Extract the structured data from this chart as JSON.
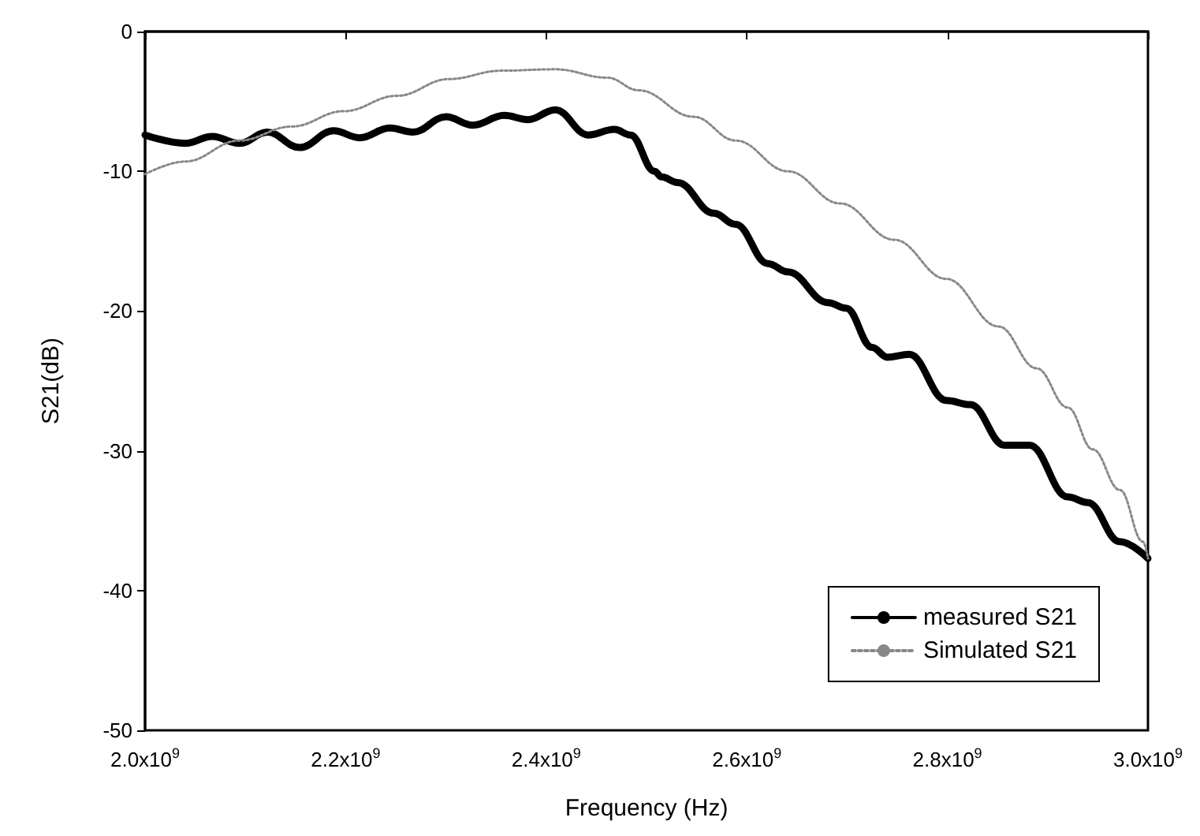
{
  "chart_data": {
    "type": "line",
    "xlabel": "Frequency (Hz)",
    "ylabel": "S21(dB)",
    "xlim": [
      2000000000,
      3000000000
    ],
    "xticks": [
      {
        "value": 2000000000,
        "label": "2.0x10$^{9}$"
      },
      {
        "value": 2200000000,
        "label": "2.2x10$^{9}$"
      },
      {
        "value": 2400000000,
        "label": "2.4x10$^{9}$"
      },
      {
        "value": 2600000000,
        "label": "2.6x10$^{9}$"
      },
      {
        "value": 2800000000,
        "label": "2.8x10$^{9}$"
      },
      {
        "value": 3000000000,
        "label": "3.0x10$^{9}$"
      }
    ],
    "ylim": [
      -50,
      0
    ],
    "yticks": [
      -50,
      -40,
      -30,
      -20,
      -10,
      0
    ],
    "grid": false,
    "legend": "bottom right",
    "marker": "none",
    "series": [
      {
        "name": "measured S21",
        "color": "#000000",
        "line_style": "solid",
        "x": [
          2000000000,
          2040000000,
          2067000000,
          2094000000,
          2122000000,
          2154000000,
          2188000000,
          2214000000,
          2244000000,
          2267000000,
          2300000000,
          2327000000,
          2358000000,
          2382000000,
          2409000000,
          2442000000,
          2468000000,
          2484000000,
          2508000000,
          2515000000,
          2531000000,
          2567000000,
          2589000000,
          2621000000,
          2641000000,
          2681000000,
          2699000000,
          2725000000,
          2740000000,
          2762000000,
          2799000000,
          2823000000,
          2857000000,
          2882000000,
          2920000000,
          2940000000,
          2972000000,
          3000000000
        ],
        "values": [
          -7.4,
          -8.0,
          -7.5,
          -8.0,
          -7.2,
          -8.3,
          -7.1,
          -7.6,
          -6.9,
          -7.2,
          -6.1,
          -6.7,
          -6.0,
          -6.3,
          -5.6,
          -7.4,
          -7.0,
          -7.4,
          -10.0,
          -10.4,
          -10.8,
          -13.0,
          -13.8,
          -16.6,
          -17.2,
          -19.4,
          -19.8,
          -22.6,
          -23.3,
          -23.1,
          -26.4,
          -26.7,
          -29.6,
          -29.6,
          -33.3,
          -33.7,
          -36.5,
          -37.7
        ]
      },
      {
        "name": "Simulated S21",
        "color": "#888888",
        "line_style": "dotted",
        "x": [
          2000000000,
          2040000000,
          2094000000,
          2146000000,
          2198000000,
          2251000000,
          2303000000,
          2355000000,
          2409000000,
          2461000000,
          2492000000,
          2547000000,
          2589000000,
          2641000000,
          2693000000,
          2747000000,
          2799000000,
          2851000000,
          2889000000,
          2920000000,
          2945000000,
          2972000000,
          2995000000,
          3000000000
        ],
        "values": [
          -10.2,
          -9.3,
          -7.8,
          -6.8,
          -5.7,
          -4.6,
          -3.4,
          -2.8,
          -2.7,
          -3.3,
          -4.2,
          -6.1,
          -7.8,
          -10.0,
          -12.3,
          -14.9,
          -17.7,
          -21.1,
          -24.1,
          -26.9,
          -29.9,
          -32.8,
          -36.5,
          -37.7
        ]
      }
    ]
  }
}
